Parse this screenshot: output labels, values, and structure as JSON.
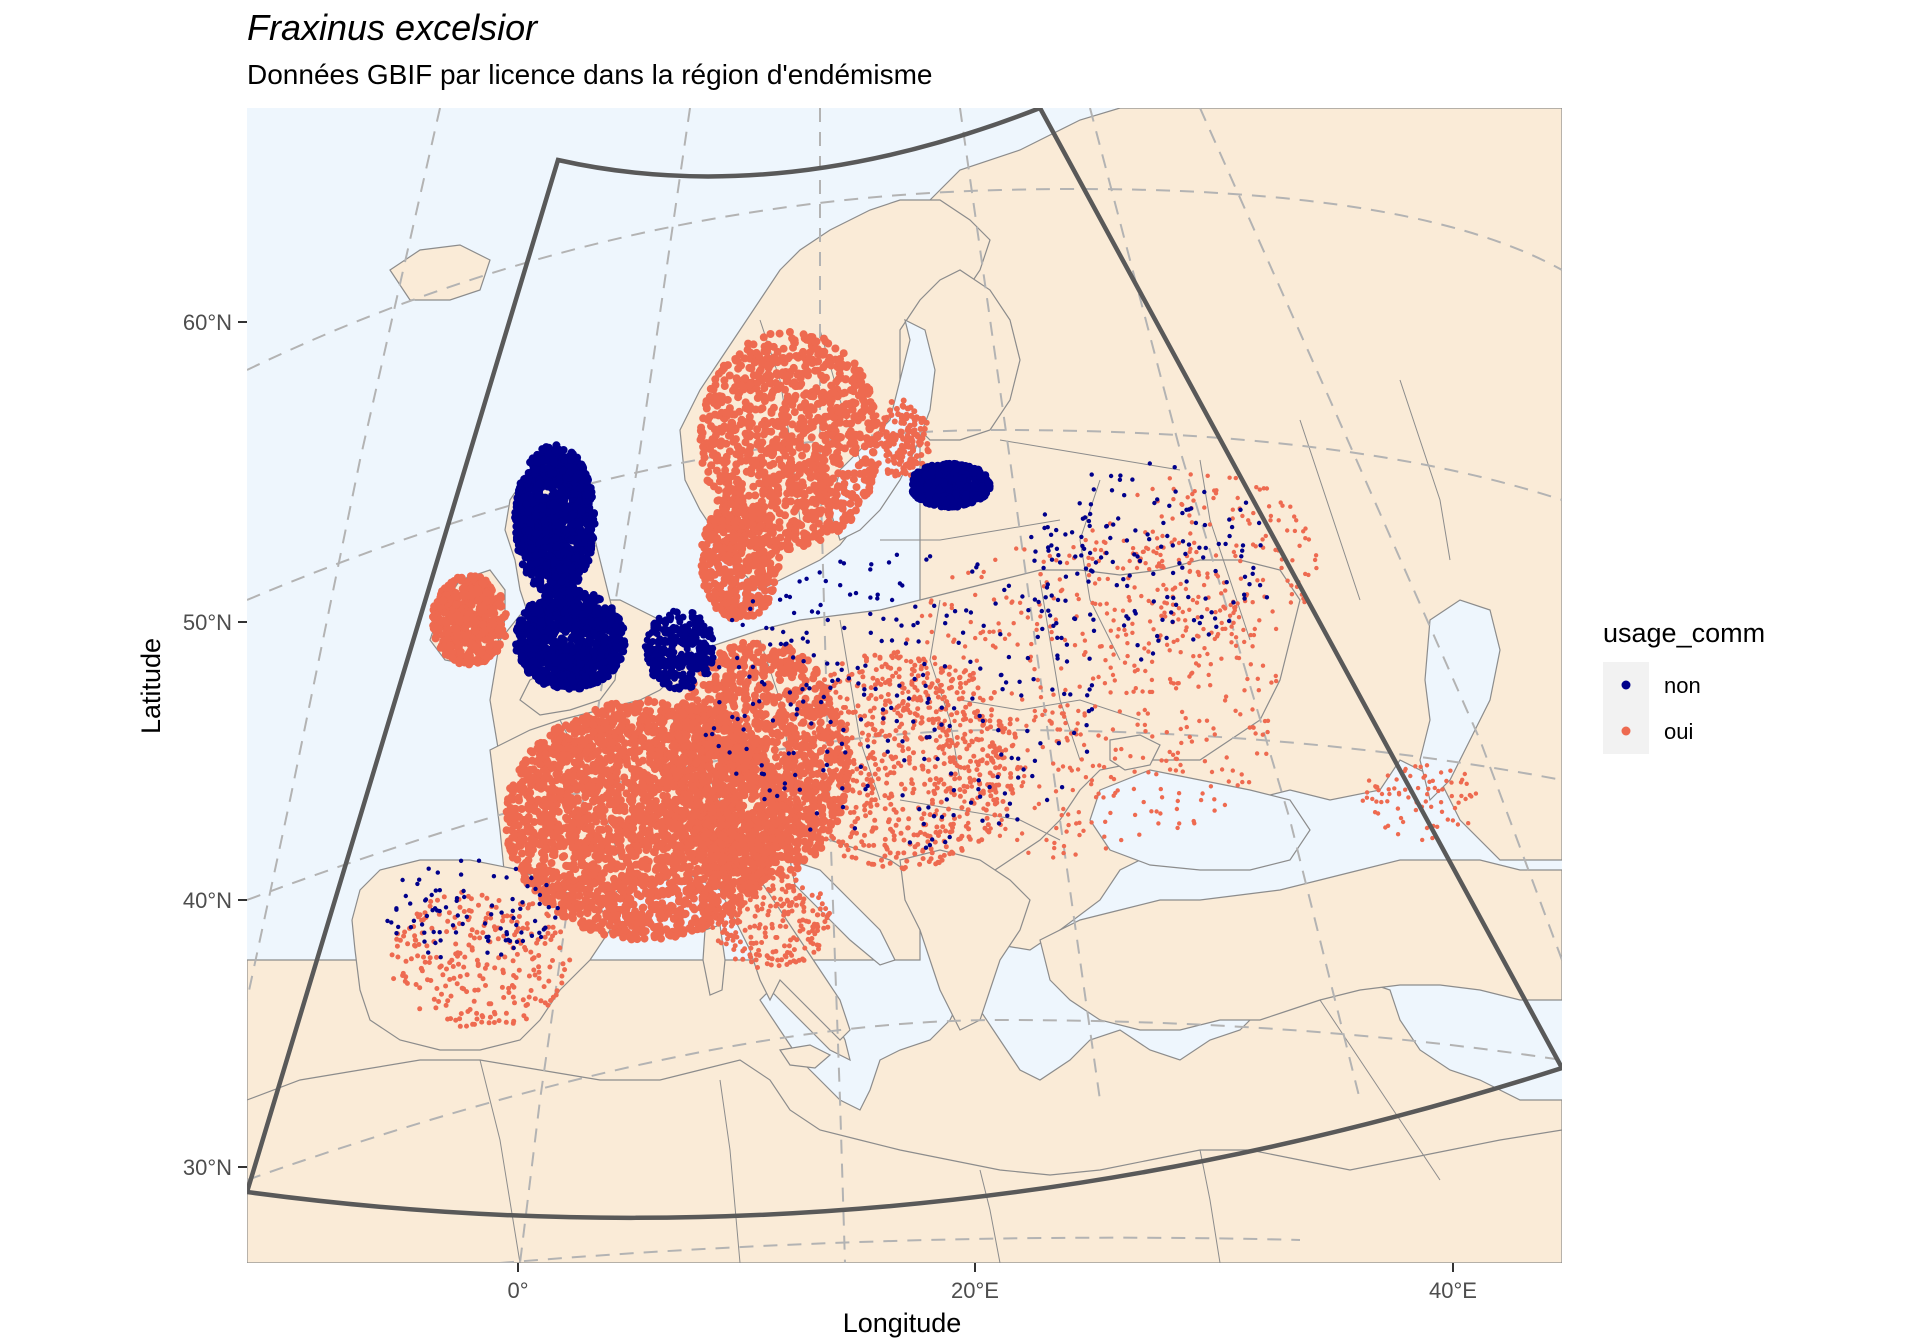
{
  "title": "Fraxinus excelsior",
  "subtitle": "Données GBIF par licence dans la région d'endémisme",
  "x_axis_label": "Longitude",
  "y_axis_label": "Latitude",
  "x_tick_labels": [
    "0°",
    "20°E",
    "40°E"
  ],
  "y_tick_labels": [
    "60°N",
    "50°N",
    "40°N",
    "30°N"
  ],
  "legend": {
    "title": "usage_comm",
    "items": [
      {
        "label": "non",
        "color": "#00008B"
      },
      {
        "label": "oui",
        "color": "#EE6A50"
      }
    ]
  },
  "colors": {
    "sea": "#EEF6FD",
    "land": "#FAEBD7",
    "border": "#8c8c8c",
    "region_outline": "#595959",
    "graticule": "#b3b3b3",
    "non": "#00008B",
    "oui": "#EE6A50"
  },
  "chart_data": {
    "type": "scatter",
    "title": "Fraxinus excelsior",
    "subtitle": "Données GBIF par licence dans la région d'endémisme",
    "xlabel": "Longitude",
    "ylabel": "Latitude",
    "x_ticks": [
      "0°",
      "20°E",
      "40°E"
    ],
    "y_ticks": [
      "60°N",
      "50°N",
      "40°N",
      "30°N"
    ],
    "legend_position": "right",
    "series": [
      {
        "name": "non",
        "color": "#00008B"
      },
      {
        "name": "oui",
        "color": "#EE6A50"
      }
    ]
  }
}
